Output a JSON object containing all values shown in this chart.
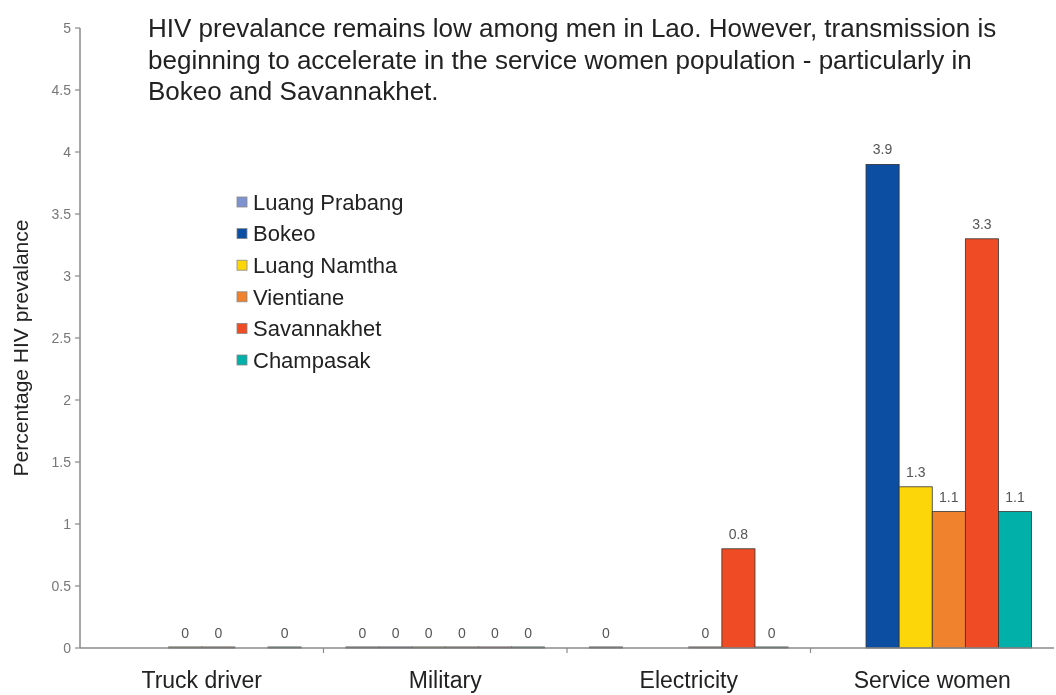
{
  "chart_data": {
    "type": "bar",
    "title": "HIV prevalance remains low among men in Lao. However, transmission is beginning to accelerate in the service women population - particularly in Bokeo and Savannakhet.",
    "ylabel": "Percentage HIV prevalance",
    "categories": [
      "Truck driver",
      "Military",
      "Electricity",
      "Service women"
    ],
    "series": [
      {
        "name": "Luang Prabang",
        "color": "#7f93d1",
        "values": [
          null,
          0,
          0,
          null
        ]
      },
      {
        "name": "Bokeo",
        "color": "#0b4ea2",
        "values": [
          null,
          0,
          null,
          3.9
        ]
      },
      {
        "name": "Luang Namtha",
        "color": "#fdd60a",
        "values": [
          0,
          0,
          null,
          1.3
        ]
      },
      {
        "name": "Vientiane",
        "color": "#f0822e",
        "values": [
          0,
          0,
          0,
          1.1
        ]
      },
      {
        "name": "Savannakhet",
        "color": "#ef4b24",
        "values": [
          null,
          0,
          0.8,
          3.3
        ]
      },
      {
        "name": "Champasak",
        "color": "#00b0a9",
        "values": [
          0,
          0,
          0,
          1.1
        ]
      }
    ],
    "ylim": [
      0,
      5
    ],
    "yticks": [
      0,
      0.5,
      1,
      1.5,
      2,
      2.5,
      3,
      3.5,
      4,
      4.5,
      5
    ],
    "data_labels": true,
    "legend": "top left",
    "grid": false
  }
}
